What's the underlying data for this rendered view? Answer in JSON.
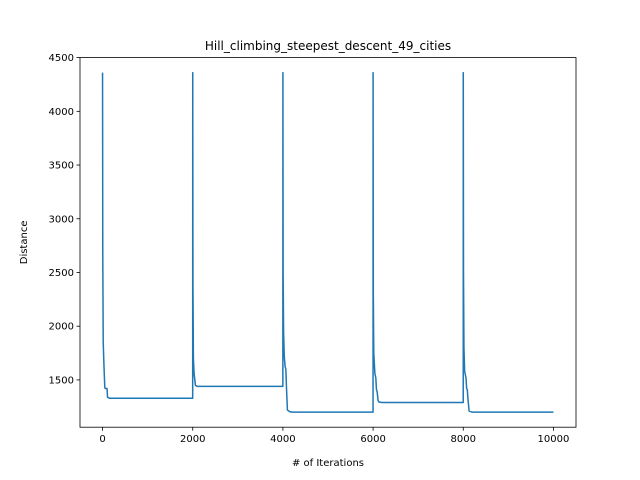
{
  "chart_data": {
    "type": "line",
    "title": "Hill_climbing_steepest_descent_49_cities",
    "xlabel": "# of Iterations",
    "ylabel": "Distance",
    "xlim": [
      -500,
      10500
    ],
    "ylim": [
      1060,
      4500
    ],
    "xticks": [
      0,
      2000,
      4000,
      6000,
      8000,
      10000
    ],
    "yticks": [
      1500,
      2000,
      2500,
      3000,
      3500,
      4000,
      4500
    ],
    "grid": false,
    "line_color": "#1f77b4",
    "series": [
      {
        "x": [
          0,
          5,
          15,
          30,
          50,
          60,
          100,
          110,
          150,
          1999,
          2000,
          2005,
          2015,
          2030,
          2060,
          2100,
          3999,
          4000,
          4005,
          4015,
          4030,
          4050,
          4065,
          4080,
          4100,
          4150,
          4200,
          5999,
          6000,
          6005,
          6015,
          6040,
          6060,
          6075,
          6090,
          6110,
          6130,
          6200,
          7999,
          8000,
          8005,
          8015,
          8030,
          8060,
          8075,
          8090,
          8100,
          8130,
          8200,
          10000
        ],
        "y": [
          4360,
          2700,
          1850,
          1650,
          1430,
          1420,
          1420,
          1340,
          1330,
          1330,
          4360,
          2400,
          1700,
          1560,
          1450,
          1440,
          1440,
          4360,
          2500,
          1950,
          1720,
          1620,
          1600,
          1420,
          1220,
          1205,
          1200,
          1200,
          4360,
          2300,
          1750,
          1560,
          1520,
          1410,
          1390,
          1310,
          1295,
          1290,
          1290,
          4360,
          2500,
          1800,
          1580,
          1520,
          1420,
          1410,
          1340,
          1210,
          1200,
          1200
        ]
      }
    ]
  }
}
